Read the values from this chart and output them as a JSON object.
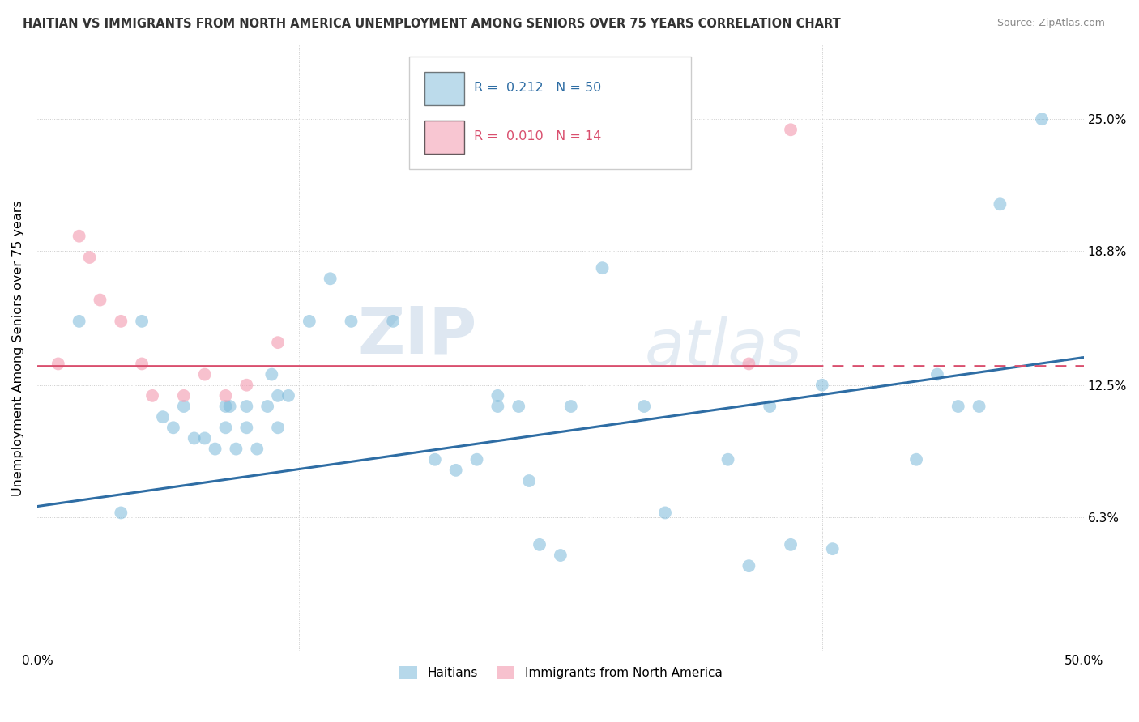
{
  "title": "HAITIAN VS IMMIGRANTS FROM NORTH AMERICA UNEMPLOYMENT AMONG SENIORS OVER 75 YEARS CORRELATION CHART",
  "source": "Source: ZipAtlas.com",
  "ylabel": "Unemployment Among Seniors over 75 years",
  "xlim": [
    0.0,
    0.5
  ],
  "ylim": [
    0.0,
    0.285
  ],
  "legend_blue_R": "0.212",
  "legend_blue_N": "50",
  "legend_pink_R": "0.010",
  "legend_pink_N": "14",
  "blue_scatter_x": [
    0.02,
    0.04,
    0.05,
    0.06,
    0.065,
    0.07,
    0.075,
    0.08,
    0.085,
    0.09,
    0.09,
    0.092,
    0.095,
    0.1,
    0.1,
    0.105,
    0.11,
    0.112,
    0.115,
    0.115,
    0.12,
    0.13,
    0.14,
    0.15,
    0.17,
    0.19,
    0.2,
    0.21,
    0.22,
    0.22,
    0.23,
    0.235,
    0.24,
    0.25,
    0.255,
    0.27,
    0.29,
    0.3,
    0.33,
    0.34,
    0.35,
    0.36,
    0.375,
    0.38,
    0.42,
    0.43,
    0.44,
    0.45,
    0.46,
    0.48
  ],
  "blue_scatter_y": [
    0.155,
    0.065,
    0.155,
    0.11,
    0.105,
    0.115,
    0.1,
    0.1,
    0.095,
    0.115,
    0.105,
    0.115,
    0.095,
    0.115,
    0.105,
    0.095,
    0.115,
    0.13,
    0.12,
    0.105,
    0.12,
    0.155,
    0.175,
    0.155,
    0.155,
    0.09,
    0.085,
    0.09,
    0.12,
    0.115,
    0.115,
    0.08,
    0.05,
    0.045,
    0.115,
    0.18,
    0.115,
    0.065,
    0.09,
    0.04,
    0.115,
    0.05,
    0.125,
    0.048,
    0.09,
    0.13,
    0.115,
    0.115,
    0.21,
    0.25
  ],
  "pink_scatter_x": [
    0.01,
    0.02,
    0.025,
    0.03,
    0.04,
    0.05,
    0.055,
    0.07,
    0.08,
    0.09,
    0.1,
    0.115,
    0.34,
    0.36
  ],
  "pink_scatter_y": [
    0.135,
    0.195,
    0.185,
    0.165,
    0.155,
    0.135,
    0.12,
    0.12,
    0.13,
    0.12,
    0.125,
    0.145,
    0.135,
    0.245
  ],
  "blue_line_y_start": 0.068,
  "blue_line_y_end": 0.138,
  "pink_line_y_start": 0.134,
  "pink_line_y_end": 0.134,
  "blue_color": "#7ab8d9",
  "pink_color": "#f4a0b5",
  "blue_line_color": "#2e6da4",
  "pink_line_color": "#d94f6e",
  "grid_color": "#cccccc",
  "watermark_zip": "ZIP",
  "watermark_atlas": "atlas",
  "legend_text_color_blue": "#2e6da4",
  "legend_text_color_pink": "#d94f6e",
  "bg_color": "#ffffff"
}
